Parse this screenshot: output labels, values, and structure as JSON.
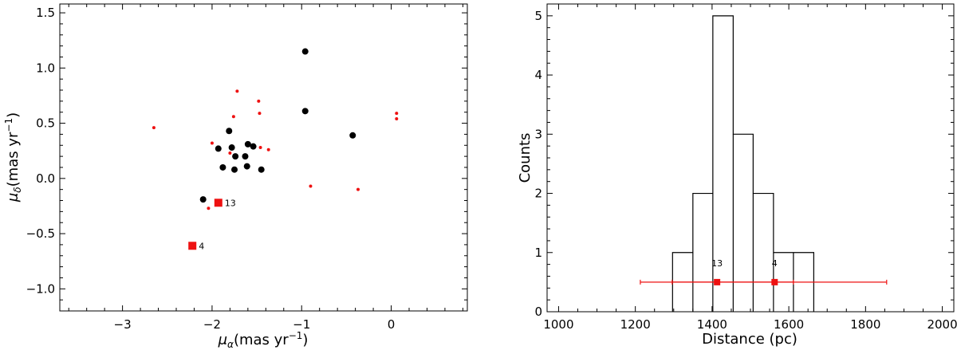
{
  "colors": {
    "black": "#000000",
    "red": "#ee1111"
  },
  "chart_data": [
    {
      "type": "scatter",
      "xlabel_prefix": "μ",
      "xlabel_sub": "α",
      "xlabel_unit": "(mas yr",
      "xlabel_exp": "−1",
      "xlabel_close": ")",
      "ylabel_prefix": "μ",
      "ylabel_sub": "δ",
      "ylabel_unit": "(mas yr",
      "ylabel_exp": "−1",
      "ylabel_close": ")",
      "xlim": [
        -3.7,
        0.85
      ],
      "ylim": [
        -1.2,
        1.58
      ],
      "xticks": [
        -3,
        -2,
        -1,
        0
      ],
      "xtick_labels": [
        "−3",
        "−2",
        "−1",
        "0"
      ],
      "yticks": [
        -1.0,
        -0.5,
        0.0,
        0.5,
        1.0,
        1.5
      ],
      "ytick_labels": [
        "−1.0",
        "−0.5",
        "0.0",
        "0.5",
        "1.0",
        "1.5"
      ],
      "series": [
        {
          "color": "#000000",
          "marker": "large-circle",
          "points": [
            [
              -0.96,
              1.15
            ],
            [
              -0.96,
              0.61
            ],
            [
              -0.43,
              0.39
            ],
            [
              -1.81,
              0.43
            ],
            [
              -1.93,
              0.27
            ],
            [
              -1.78,
              0.28
            ],
            [
              -1.6,
              0.31
            ],
            [
              -1.54,
              0.29
            ],
            [
              -1.74,
              0.2
            ],
            [
              -1.63,
              0.2
            ],
            [
              -1.88,
              0.1
            ],
            [
              -1.75,
              0.08
            ],
            [
              -1.61,
              0.11
            ],
            [
              -1.45,
              0.08
            ],
            [
              -2.1,
              -0.19
            ]
          ]
        },
        {
          "color": "#ee1111",
          "marker": "small-circle",
          "points": [
            [
              -2.65,
              0.46
            ],
            [
              -1.72,
              0.79
            ],
            [
              -1.48,
              0.7
            ],
            [
              -1.76,
              0.56
            ],
            [
              -1.47,
              0.59
            ],
            [
              -2.0,
              0.32
            ],
            [
              -1.46,
              0.28
            ],
            [
              -1.37,
              0.26
            ],
            [
              -1.8,
              0.23
            ],
            [
              -0.9,
              -0.07
            ],
            [
              -0.37,
              -0.1
            ],
            [
              0.06,
              0.59
            ],
            [
              0.06,
              0.54
            ],
            [
              -2.04,
              -0.27
            ]
          ]
        },
        {
          "color": "#ee1111",
          "marker": "square",
          "points": [
            [
              -1.93,
              -0.22
            ],
            [
              -2.22,
              -0.61
            ]
          ],
          "labels": [
            "13",
            "4"
          ]
        }
      ]
    },
    {
      "type": "histogram",
      "xlabel": "Distance (pc)",
      "ylabel": "Counts",
      "xlim": [
        970,
        2030
      ],
      "ylim": [
        0,
        5.2
      ],
      "xticks": [
        1000,
        1200,
        1400,
        1600,
        1800,
        2000
      ],
      "xtick_labels": [
        "1000",
        "1200",
        "1400",
        "1600",
        "1800",
        "2000"
      ],
      "yticks": [
        0,
        1,
        2,
        3,
        4,
        5
      ],
      "ytick_labels": [
        "0",
        "1",
        "2",
        "3",
        "4",
        "5"
      ],
      "bin_edges": [
        1297,
        1350,
        1402,
        1455,
        1507,
        1560,
        1612,
        1665
      ],
      "counts": [
        1,
        2,
        5,
        3,
        2,
        1,
        1
      ],
      "points": [
        {
          "label": "13",
          "x": 1413,
          "y": 0.5,
          "xmin": 1213,
          "xmax": 1612
        },
        {
          "label": "4",
          "x": 1563,
          "y": 0.5,
          "xmin": 1296,
          "xmax": 1855
        }
      ],
      "point_color": "#ee1111"
    }
  ]
}
